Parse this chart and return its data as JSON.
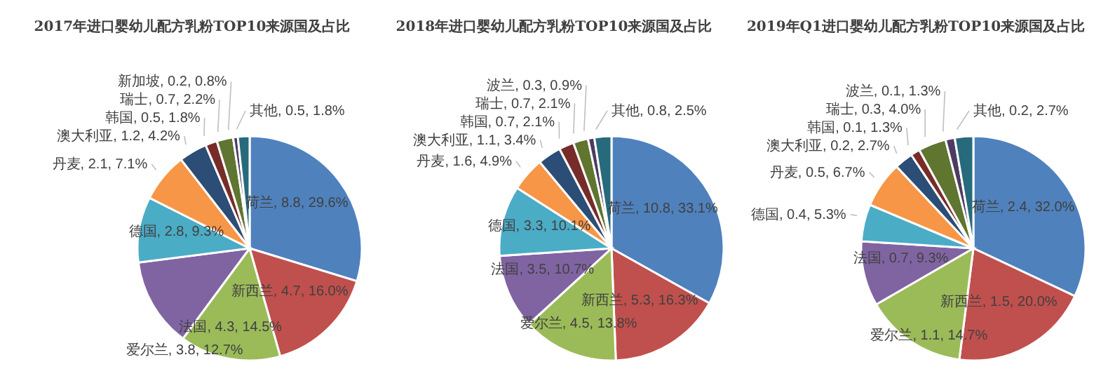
{
  "chart_data": [
    {
      "type": "pie",
      "title": "2017年进口婴幼儿配方乳粉TOP10来源国及占比",
      "categories": [
        "荷兰",
        "新西兰",
        "法国",
        "爱尔兰",
        "德国",
        "丹麦",
        "澳大利亚",
        "韩国",
        "瑞士",
        "新加坡",
        "其他"
      ],
      "values": [
        8.8,
        4.7,
        4.3,
        3.8,
        2.8,
        2.1,
        1.2,
        0.5,
        0.7,
        0.2,
        0.5
      ],
      "value_labels": [
        "8.8, 29.6%",
        "4.7, 16.0%",
        "4.3, 14.5%",
        "3.8, 12.7%",
        "2.8, 9.3%",
        "2.1, 7.1%",
        "1.2, 4.2%",
        "0.5, 1.8%",
        "0.7, 2.2%",
        "0.2, 0.8%",
        "0.5, 1.8%"
      ],
      "colors": [
        "#4f81bd",
        "#c0504d",
        "#9bbb59",
        "#8064a2",
        "#4bacc6",
        "#f79646",
        "#2c4d75",
        "#772c2a",
        "#5f7530",
        "#4d3b62",
        "#276a7c"
      ]
    },
    {
      "type": "pie",
      "title": "2018年进口婴幼儿配方乳粉TOP10来源国及占比",
      "categories": [
        "荷兰",
        "新西兰",
        "爱尔兰",
        "法国",
        "德国",
        "丹麦",
        "澳大利亚",
        "韩国",
        "瑞士",
        "波兰",
        "其他"
      ],
      "values": [
        10.8,
        5.3,
        4.5,
        3.5,
        3.3,
        1.6,
        1.1,
        0.7,
        0.7,
        0.3,
        0.8
      ],
      "value_labels": [
        "10.8, 33.1%",
        "5.3, 16.3%",
        "4.5, 13.8%",
        "3.5, 10.7%",
        "3.3, 10.1%",
        "1.6, 4.9%",
        "1.1, 3.4%",
        "0.7, 2.1%",
        "0.7, 2.1%",
        "0.3, 0.9%",
        "0.8, 2.5%"
      ],
      "colors": [
        "#4f81bd",
        "#c0504d",
        "#9bbb59",
        "#8064a2",
        "#4bacc6",
        "#f79646",
        "#2c4d75",
        "#772c2a",
        "#5f7530",
        "#4d3b62",
        "#276a7c"
      ]
    },
    {
      "type": "pie",
      "title": "2019年Q1进口婴幼儿配方乳粉TOP10来源国及占比",
      "categories": [
        "荷兰",
        "新西兰",
        "爱尔兰",
        "法国",
        "德国",
        "丹麦",
        "澳大利亚",
        "韩国",
        "瑞士",
        "波兰",
        "其他"
      ],
      "values": [
        2.4,
        1.5,
        1.1,
        0.7,
        0.4,
        0.5,
        0.2,
        0.1,
        0.3,
        0.1,
        0.2
      ],
      "value_labels": [
        "2.4, 32.0%",
        "1.5, 20.0%",
        "1.1, 14.7%",
        "0.7, 9.3%",
        "0.4, 5.3%",
        "0.5, 6.7%",
        "0.2, 2.7%",
        "0.1, 1.3%",
        "0.3, 4.0%",
        "0.1, 1.3%",
        "0.2, 2.7%"
      ],
      "colors": [
        "#4f81bd",
        "#c0504d",
        "#9bbb59",
        "#8064a2",
        "#4bacc6",
        "#f79646",
        "#2c4d75",
        "#772c2a",
        "#5f7530",
        "#4d3b62",
        "#276a7c"
      ]
    }
  ]
}
